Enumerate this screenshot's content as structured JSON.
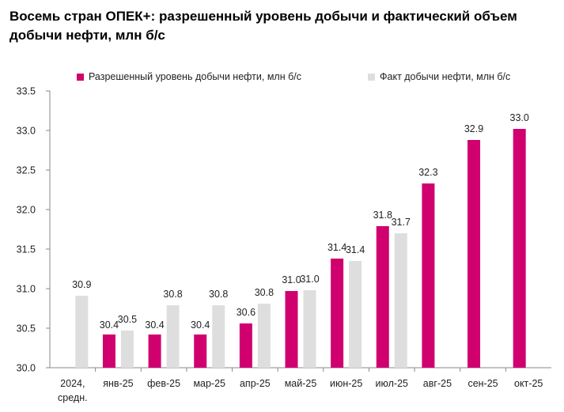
{
  "title_line1": "Восемь стран ОПЕК+: разрешенный уровень добычи и фактический объем",
  "title_line2": "добычи нефти, млн б/с",
  "colors": {
    "allowed": "#d0006f",
    "actual": "#dedede",
    "axis": "#888888",
    "text": "#222222"
  },
  "chart_data": {
    "type": "bar",
    "categories": [
      "2024, средн.",
      "янв-25",
      "фев-25",
      "мар-25",
      "апр-25",
      "май-25",
      "июн-25",
      "июл-25",
      "авг-25",
      "сен-25",
      "окт-25"
    ],
    "series": [
      {
        "name": "Разрешенный уровень добычи нефти, млн б/с",
        "values": [
          null,
          30.4,
          30.4,
          30.4,
          30.6,
          31.0,
          31.4,
          31.8,
          32.3,
          32.9,
          33.0
        ],
        "bar_values": [
          null,
          30.42,
          30.42,
          30.42,
          30.56,
          30.97,
          31.38,
          31.79,
          32.33,
          32.88,
          33.02
        ]
      },
      {
        "name": "Факт добычи нефти, млн б/с",
        "values": [
          30.9,
          30.5,
          30.8,
          30.8,
          30.8,
          31.0,
          31.4,
          31.7,
          null,
          null,
          null
        ],
        "bar_values": [
          30.91,
          30.47,
          30.79,
          30.79,
          30.81,
          30.98,
          31.35,
          31.7,
          null,
          null,
          null
        ]
      }
    ],
    "ylim": [
      30.0,
      33.5
    ],
    "yticks": [
      "30.0",
      "30.5",
      "31.0",
      "31.5",
      "32.0",
      "32.5",
      "33.0",
      "33.5"
    ],
    "legend_position": "top",
    "grid": false
  }
}
